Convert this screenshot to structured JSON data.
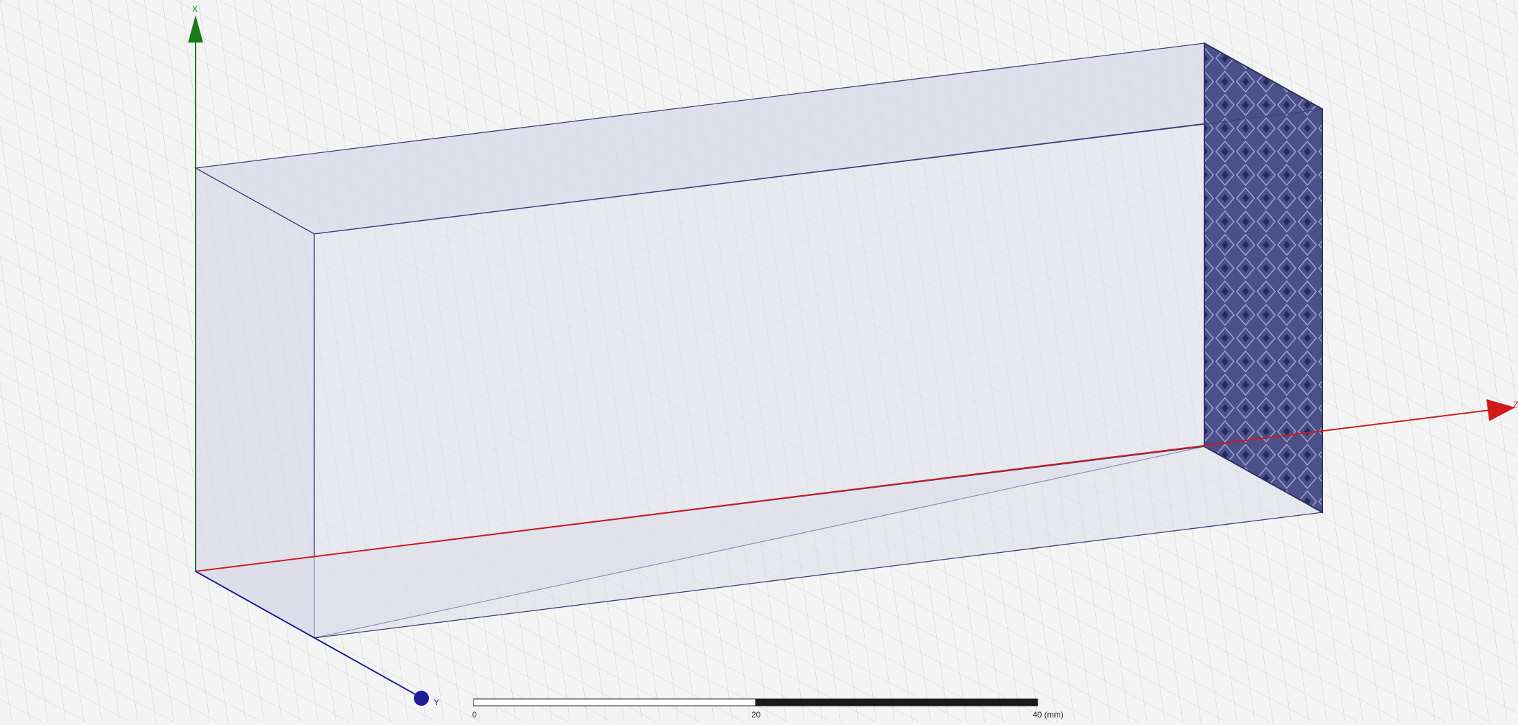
{
  "viewport": {
    "background": "#f4f4f4",
    "grid_color": "#c9c9c9"
  },
  "axes": {
    "x_label": "X",
    "y_label": "Y",
    "z_label": "Z",
    "x_color": "#1a7a1a",
    "y_color": "#1c1c9a",
    "z_color": "#d11a1a"
  },
  "model": {
    "edge_color": "#3a3f78",
    "face_color": "#dcdcec",
    "port_face_color": "#4a4f86"
  },
  "ruler": {
    "tick_start": "0",
    "tick_mid": "20",
    "tick_end": "40 (mm)"
  }
}
